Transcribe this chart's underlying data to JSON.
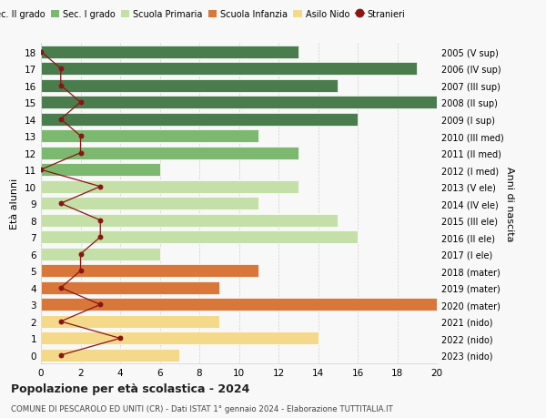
{
  "ages": [
    18,
    17,
    16,
    15,
    14,
    13,
    12,
    11,
    10,
    9,
    8,
    7,
    6,
    5,
    4,
    3,
    2,
    1,
    0
  ],
  "right_labels": [
    "2005 (V sup)",
    "2006 (IV sup)",
    "2007 (III sup)",
    "2008 (II sup)",
    "2009 (I sup)",
    "2010 (III med)",
    "2011 (II med)",
    "2012 (I med)",
    "2013 (V ele)",
    "2014 (IV ele)",
    "2015 (III ele)",
    "2016 (II ele)",
    "2017 (I ele)",
    "2018 (mater)",
    "2019 (mater)",
    "2020 (mater)",
    "2021 (nido)",
    "2022 (nido)",
    "2023 (nido)"
  ],
  "bar_values": [
    13,
    19,
    15,
    20,
    16,
    11,
    13,
    6,
    13,
    11,
    15,
    16,
    6,
    11,
    9,
    20,
    9,
    14,
    7
  ],
  "bar_colors": [
    "#4a7c4e",
    "#4a7c4e",
    "#4a7c4e",
    "#4a7c4e",
    "#4a7c4e",
    "#7db870",
    "#7db870",
    "#7db870",
    "#c5dfa8",
    "#c5dfa8",
    "#c5dfa8",
    "#c5dfa8",
    "#c5dfa8",
    "#d9773a",
    "#d9773a",
    "#d9773a",
    "#f5d98b",
    "#f5d98b",
    "#f5d98b"
  ],
  "stranieri_values": [
    0,
    1,
    1,
    2,
    1,
    2,
    2,
    0,
    3,
    1,
    3,
    3,
    2,
    2,
    1,
    3,
    1,
    4,
    1
  ],
  "title": "Popolazione per età scolastica - 2024",
  "subtitle": "COMUNE DI PESCAROLO ED UNITI (CR) - Dati ISTAT 1° gennaio 2024 - Elaborazione TUTTITALIA.IT",
  "ylabel": "Età alunni",
  "right_axis_label": "Anni di nascita",
  "xlim": [
    0,
    20
  ],
  "xticks": [
    0,
    2,
    4,
    6,
    8,
    10,
    12,
    14,
    16,
    18,
    20
  ],
  "bg_color": "#f8f8f8",
  "grid_color": "#d0d0d0",
  "bar_edge_color": "#ffffff",
  "stranieri_color": "#8b1515",
  "legend_items": [
    {
      "label": "Sec. II grado",
      "color": "#4a7c4e"
    },
    {
      "label": "Sec. I grado",
      "color": "#7db870"
    },
    {
      "label": "Scuola Primaria",
      "color": "#c5dfa8"
    },
    {
      "label": "Scuola Infanzia",
      "color": "#d9773a"
    },
    {
      "label": "Asilo Nido",
      "color": "#f5d98b"
    },
    {
      "label": "Stranieri",
      "color": "#8b1515"
    }
  ]
}
